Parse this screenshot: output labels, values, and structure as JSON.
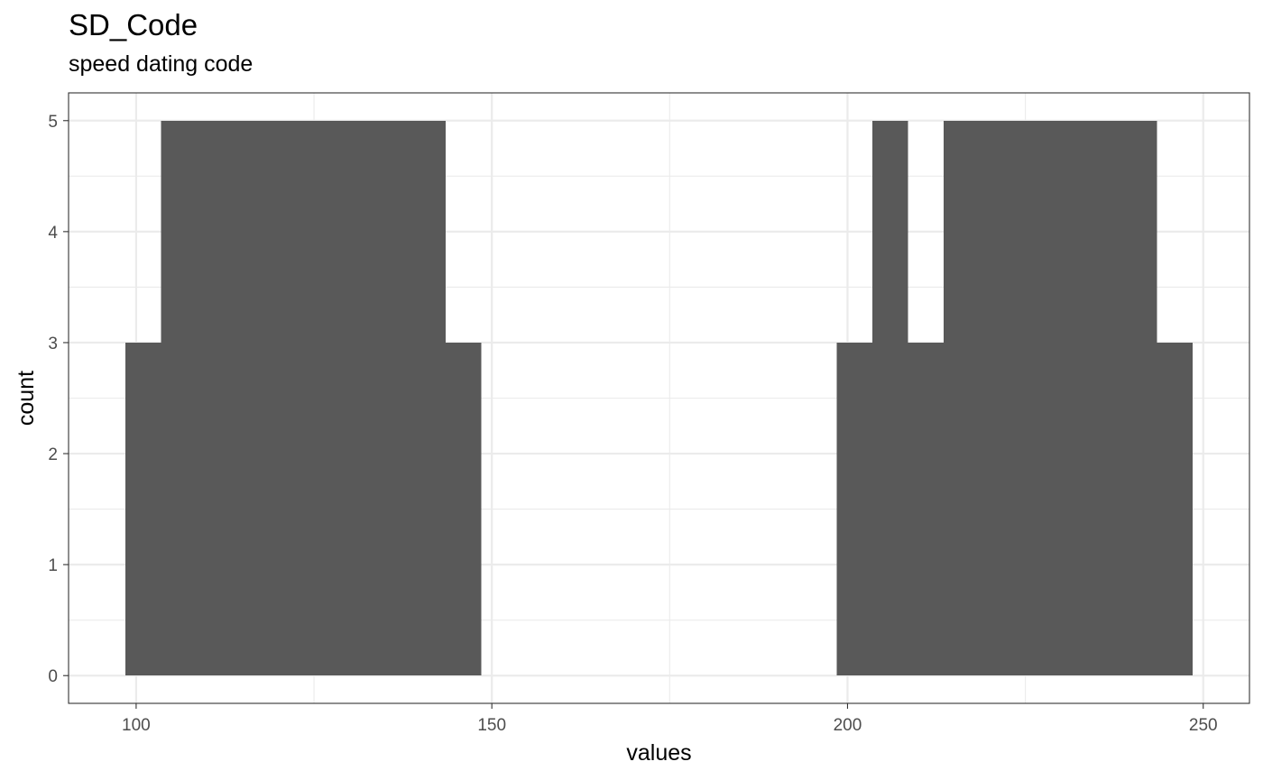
{
  "chart_data": {
    "type": "bar",
    "title": "SD_Code",
    "subtitle": "speed dating code",
    "xlabel": "values",
    "ylabel": "count",
    "xlim": [
      90.5,
      256.5
    ],
    "ylim": [
      -0.25,
      5.25
    ],
    "x_ticks": [
      100,
      150,
      200,
      250
    ],
    "y_ticks": [
      0,
      1,
      2,
      3,
      4,
      5
    ],
    "grid": true,
    "bins": [
      {
        "start": 98.5,
        "end": 103.5,
        "count": 3
      },
      {
        "start": 103.5,
        "end": 143.5,
        "count": 5
      },
      {
        "start": 143.5,
        "end": 148.5,
        "count": 3
      },
      {
        "start": 198.5,
        "end": 203.5,
        "count": 3
      },
      {
        "start": 203.5,
        "end": 208.5,
        "count": 5
      },
      {
        "start": 208.5,
        "end": 213.5,
        "count": 3
      },
      {
        "start": 213.5,
        "end": 243.5,
        "count": 5
      },
      {
        "start": 243.5,
        "end": 248.5,
        "count": 3
      }
    ],
    "colors": {
      "bar": "#595959",
      "grid": "#ebebeb",
      "panel_border": "#333333"
    }
  }
}
